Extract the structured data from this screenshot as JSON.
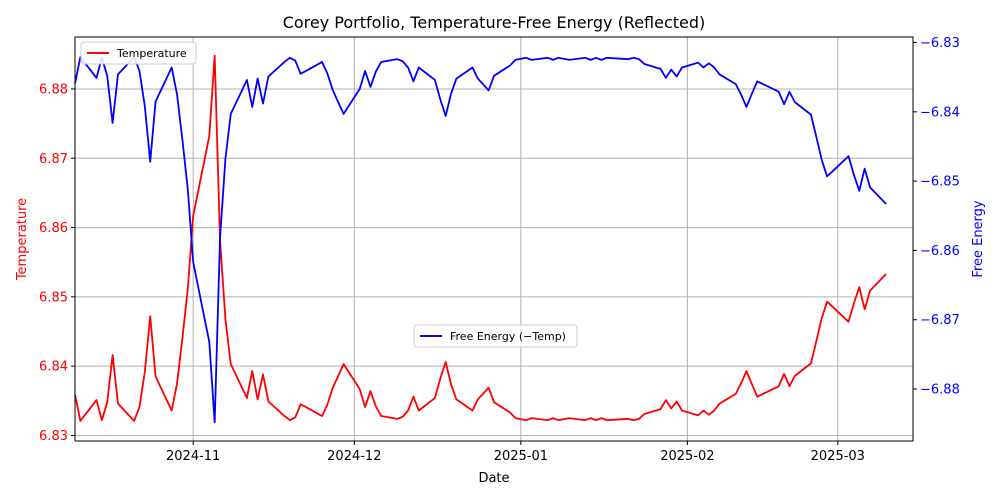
{
  "chart_data": {
    "type": "line",
    "title": "Corey Portfolio, Temperature-Free Energy (Reflected)",
    "xlabel": "Date",
    "ylabel_left": "Temperature",
    "ylabel_right": "Free Energy",
    "xlim": [
      "2024-10-10",
      "2025-03-15"
    ],
    "x_ticks": [
      "2024-11-01",
      "2024-12-01",
      "2025-01-01",
      "2025-02-01",
      "2025-03-01"
    ],
    "x_tick_labels": [
      "2024-11",
      "2024-12",
      "2025-01",
      "2025-02",
      "2025-03"
    ],
    "ylim_left": [
      6.8292,
      6.8875
    ],
    "y_ticks_left": [
      6.83,
      6.84,
      6.85,
      6.86,
      6.87,
      6.88
    ],
    "y_tick_labels_left": [
      "6.83",
      "6.84",
      "6.85",
      "6.86",
      "6.87",
      "6.88"
    ],
    "ylim_right": [
      -6.8875,
      -6.8292
    ],
    "y_ticks_right": [
      -6.88,
      -6.87,
      -6.86,
      -6.85,
      -6.84,
      -6.83
    ],
    "y_tick_labels_right": [
      "−6.88",
      "−6.87",
      "−6.86",
      "−6.85",
      "−6.84",
      "−6.83"
    ],
    "grid": true,
    "colors": {
      "temperature": "#ff0000",
      "free_energy": "#0000ff",
      "grid": "#b0b0b0"
    },
    "legend_placement": {
      "temperature": "top-left",
      "free_energy": "center"
    },
    "dates": [
      "2024-10-10",
      "2024-10-11",
      "2024-10-14",
      "2024-10-15",
      "2024-10-16",
      "2024-10-17",
      "2024-10-18",
      "2024-10-21",
      "2024-10-22",
      "2024-10-23",
      "2024-10-24",
      "2024-10-25",
      "2024-10-28",
      "2024-10-29",
      "2024-10-30",
      "2024-10-31",
      "2024-11-01",
      "2024-11-04",
      "2024-11-05",
      "2024-11-06",
      "2024-11-07",
      "2024-11-08",
      "2024-11-11",
      "2024-11-12",
      "2024-11-13",
      "2024-11-14",
      "2024-11-15",
      "2024-11-18",
      "2024-11-19",
      "2024-11-20",
      "2024-11-21",
      "2024-11-22",
      "2024-11-25",
      "2024-11-26",
      "2024-11-27",
      "2024-11-29",
      "2024-12-02",
      "2024-12-03",
      "2024-12-04",
      "2024-12-05",
      "2024-12-06",
      "2024-12-09",
      "2024-12-10",
      "2024-12-11",
      "2024-12-12",
      "2024-12-13",
      "2024-12-16",
      "2024-12-17",
      "2024-12-18",
      "2024-12-19",
      "2024-12-20",
      "2024-12-23",
      "2024-12-24",
      "2024-12-26",
      "2024-12-27",
      "2024-12-30",
      "2024-12-31",
      "2025-01-02",
      "2025-01-03",
      "2025-01-06",
      "2025-01-07",
      "2025-01-08",
      "2025-01-10",
      "2025-01-13",
      "2025-01-14",
      "2025-01-15",
      "2025-01-16",
      "2025-01-17",
      "2025-01-21",
      "2025-01-22",
      "2025-01-23",
      "2025-01-24",
      "2025-01-27",
      "2025-01-28",
      "2025-01-29",
      "2025-01-30",
      "2025-01-31",
      "2025-02-03",
      "2025-02-04",
      "2025-02-05",
      "2025-02-06",
      "2025-02-07",
      "2025-02-10",
      "2025-02-11",
      "2025-02-12",
      "2025-02-13",
      "2025-02-14",
      "2025-02-18",
      "2025-02-19",
      "2025-02-20",
      "2025-02-21",
      "2025-02-24",
      "2025-02-25",
      "2025-02-26",
      "2025-02-27",
      "2025-02-28",
      "2025-03-03",
      "2025-03-04",
      "2025-03-05",
      "2025-03-06",
      "2025-03-07",
      "2025-03-10"
    ],
    "series": [
      {
        "name": "Temperature",
        "axis": "left",
        "values": [
          6.8359,
          6.8321,
          6.8351,
          6.8322,
          6.8348,
          6.8416,
          6.8346,
          6.8321,
          6.8341,
          6.8392,
          6.8472,
          6.8385,
          6.8336,
          6.8375,
          6.8441,
          6.8512,
          6.8617,
          6.8732,
          6.8848,
          6.8582,
          6.8468,
          6.8403,
          6.8354,
          6.8393,
          6.8352,
          6.8388,
          6.8349,
          6.8328,
          6.8322,
          6.8326,
          6.8345,
          6.8341,
          6.8328,
          6.8345,
          6.8369,
          6.8403,
          6.8367,
          6.8341,
          6.8364,
          6.8342,
          6.8328,
          6.8324,
          6.8327,
          6.8336,
          6.8356,
          6.8336,
          6.8354,
          6.8382,
          6.8406,
          6.8374,
          6.8352,
          6.8336,
          6.8352,
          6.8369,
          6.8348,
          6.8333,
          6.8325,
          6.8322,
          6.8325,
          6.8322,
          6.8325,
          6.8322,
          6.8325,
          6.8322,
          6.8325,
          6.8322,
          6.8325,
          6.8322,
          6.8324,
          6.8322,
          6.8324,
          6.8331,
          6.8338,
          6.8351,
          6.8339,
          6.8349,
          6.8336,
          6.8329,
          6.8336,
          6.833,
          6.8336,
          6.8346,
          6.836,
          6.8375,
          6.8393,
          6.8374,
          6.8356,
          6.8371,
          6.8389,
          6.8371,
          6.8386,
          6.8404,
          6.8436,
          6.8469,
          6.8493,
          6.8486,
          6.8464,
          6.8491,
          6.8514,
          6.8482,
          6.8509,
          6.8533
        ]
      },
      {
        "name": "Free Energy (−Temp)",
        "axis": "right",
        "values": [
          -6.8359,
          -6.8321,
          -6.8351,
          -6.8322,
          -6.8348,
          -6.8416,
          -6.8346,
          -6.8321,
          -6.8341,
          -6.8392,
          -6.8472,
          -6.8385,
          -6.8336,
          -6.8375,
          -6.8441,
          -6.8512,
          -6.8617,
          -6.8732,
          -6.8848,
          -6.8582,
          -6.8468,
          -6.8403,
          -6.8354,
          -6.8393,
          -6.8352,
          -6.8388,
          -6.8349,
          -6.8328,
          -6.8322,
          -6.8326,
          -6.8345,
          -6.8341,
          -6.8328,
          -6.8345,
          -6.8369,
          -6.8403,
          -6.8367,
          -6.8341,
          -6.8364,
          -6.8342,
          -6.8328,
          -6.8324,
          -6.8327,
          -6.8336,
          -6.8356,
          -6.8336,
          -6.8354,
          -6.8382,
          -6.8406,
          -6.8374,
          -6.8352,
          -6.8336,
          -6.8352,
          -6.8369,
          -6.8348,
          -6.8333,
          -6.8325,
          -6.8322,
          -6.8325,
          -6.8322,
          -6.8325,
          -6.8322,
          -6.8325,
          -6.8322,
          -6.8325,
          -6.8322,
          -6.8325,
          -6.8322,
          -6.8324,
          -6.8322,
          -6.8324,
          -6.8331,
          -6.8338,
          -6.8351,
          -6.8339,
          -6.8349,
          -6.8336,
          -6.8329,
          -6.8336,
          -6.833,
          -6.8336,
          -6.8346,
          -6.836,
          -6.8375,
          -6.8393,
          -6.8374,
          -6.8356,
          -6.8371,
          -6.8389,
          -6.8371,
          -6.8386,
          -6.8404,
          -6.8436,
          -6.8469,
          -6.8493,
          -6.8486,
          -6.8464,
          -6.8491,
          -6.8514,
          -6.8482,
          -6.8509,
          -6.8533
        ]
      }
    ]
  }
}
